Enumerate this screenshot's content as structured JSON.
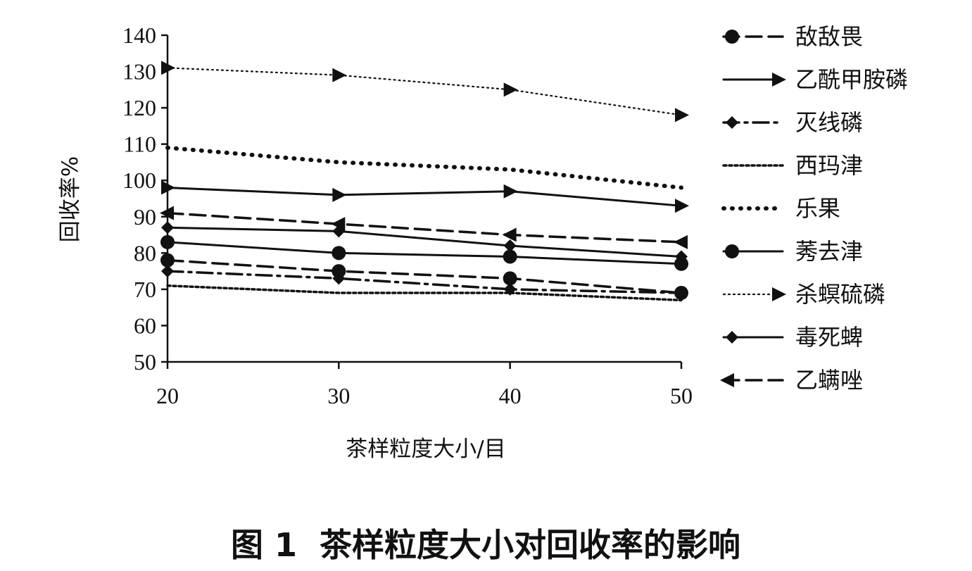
{
  "chart_data": {
    "type": "line",
    "caption": "图 1  茶样粒度大小对回收率的影响",
    "xlabel": "茶样粒度大小/目",
    "ylabel": "回收率%",
    "x": [
      20,
      30,
      40,
      50
    ],
    "xlim": [
      20,
      50
    ],
    "ylim": [
      50,
      140
    ],
    "yticks": [
      50,
      60,
      70,
      80,
      90,
      100,
      110,
      120,
      130,
      140
    ],
    "grid": false,
    "legend_position": "right",
    "series": [
      {
        "name": "敌敌畏",
        "values": [
          78,
          75,
          73,
          69
        ],
        "dash": "22,10",
        "marker": "circle",
        "stroke": 3.5
      },
      {
        "name": "乙酰甲胺磷",
        "values": [
          98,
          96,
          97,
          93
        ],
        "dash": "",
        "marker": "arrow",
        "stroke": 3
      },
      {
        "name": "灭线磷",
        "values": [
          75,
          73,
          70,
          69
        ],
        "dash": "22,8,4,8",
        "marker": "diamond",
        "stroke": 3.5
      },
      {
        "name": "西玛津",
        "values": [
          71,
          69,
          69,
          67
        ],
        "dash": "4,4",
        "marker": "none",
        "stroke": 3.5
      },
      {
        "name": "乐果",
        "values": [
          109,
          105,
          103,
          98
        ],
        "dash": "1,11",
        "marker": "none",
        "stroke": 6
      },
      {
        "name": "莠去津",
        "values": [
          83,
          80,
          79,
          77
        ],
        "dash": "",
        "marker": "circle",
        "stroke": 3
      },
      {
        "name": "杀螟硫磷",
        "values": [
          131,
          129,
          125,
          118
        ],
        "dash": "2,5",
        "marker": "arrow",
        "stroke": 2.2
      },
      {
        "name": "毒死蜱",
        "values": [
          87,
          86,
          82,
          79
        ],
        "dash": "",
        "marker": "diamond",
        "stroke": 3
      },
      {
        "name": "乙螨唑",
        "values": [
          91,
          88,
          85,
          83
        ],
        "dash": "22,10",
        "marker": "arrow-left",
        "stroke": 3.5
      }
    ],
    "color": "#111111"
  }
}
